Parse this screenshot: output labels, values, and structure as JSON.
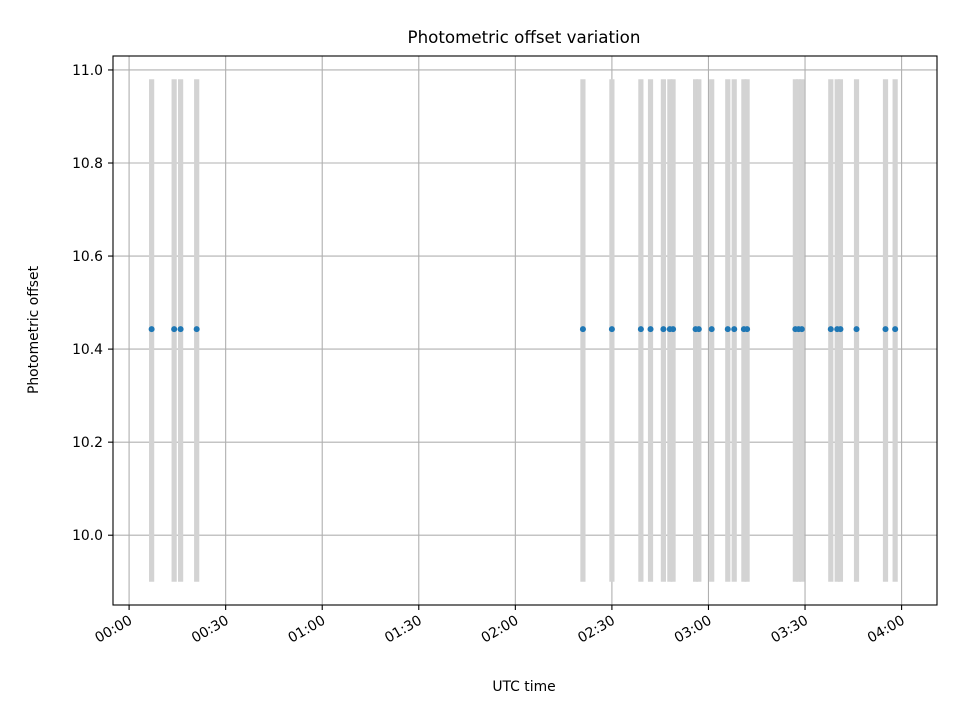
{
  "chart_data": {
    "type": "scatter",
    "title": "Photometric offset variation",
    "xlabel": "UTC time",
    "ylabel": "Photometric offset",
    "xlim": [
      "23:55",
      "04:11"
    ],
    "ylim": [
      9.85,
      11.03
    ],
    "x_ticks": [
      "00:00",
      "00:30",
      "01:00",
      "01:30",
      "02:00",
      "02:30",
      "03:00",
      "03:30",
      "04:00"
    ],
    "y_ticks": [
      10.0,
      10.2,
      10.4,
      10.6,
      10.8,
      11.0
    ],
    "y_tick_labels": [
      "10.0",
      "10.2",
      "10.4",
      "10.6",
      "10.8",
      "11.0"
    ],
    "grid": true,
    "colors": {
      "points": "#1f77b4",
      "bars": "#d3d3d3",
      "grid": "#b0b0b0"
    },
    "bars": {
      "ymin": 9.9,
      "ymax": 10.98,
      "x": [
        "00:07",
        "00:14",
        "00:16",
        "00:21",
        "02:21",
        "02:30",
        "02:39",
        "02:42",
        "02:46",
        "02:48",
        "02:49",
        "02:56",
        "02:57",
        "03:01",
        "03:06",
        "03:08",
        "03:11",
        "03:12",
        "03:27",
        "03:28",
        "03:29",
        "03:38",
        "03:40",
        "03:41",
        "03:46",
        "03:55",
        "03:58"
      ]
    },
    "series": [
      {
        "x": [
          "00:07",
          "00:14",
          "00:16",
          "00:21",
          "02:21",
          "02:30",
          "02:39",
          "02:42",
          "02:46",
          "02:48",
          "02:49",
          "02:56",
          "02:57",
          "03:01",
          "03:06",
          "03:08",
          "03:11",
          "03:12",
          "03:27",
          "03:28",
          "03:29",
          "03:38",
          "03:40",
          "03:41",
          "03:46",
          "03:55",
          "03:58"
        ],
        "y": [
          10.443,
          10.443,
          10.443,
          10.443,
          10.443,
          10.443,
          10.443,
          10.443,
          10.443,
          10.443,
          10.443,
          10.443,
          10.443,
          10.443,
          10.443,
          10.443,
          10.443,
          10.443,
          10.443,
          10.443,
          10.443,
          10.443,
          10.443,
          10.443,
          10.443,
          10.443,
          10.443
        ]
      }
    ]
  }
}
